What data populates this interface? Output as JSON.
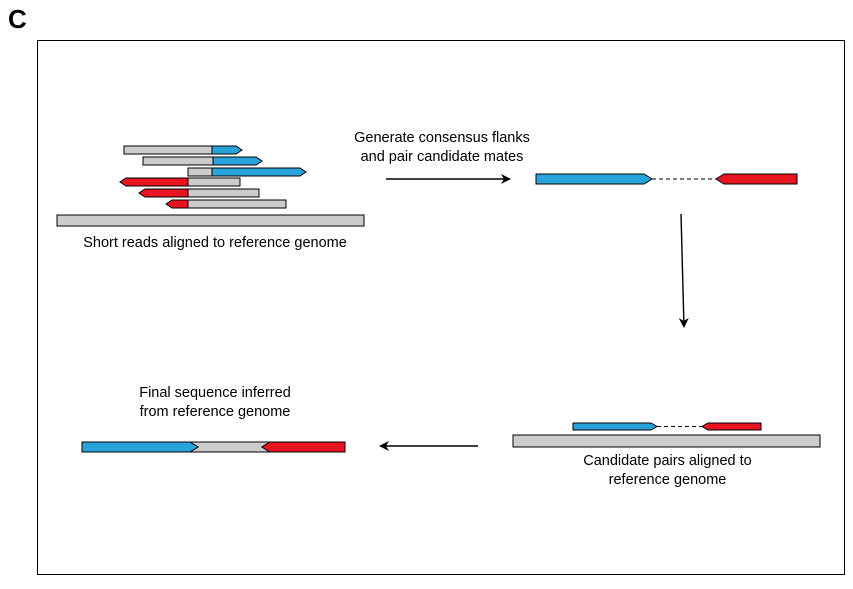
{
  "panel_label": "C",
  "labels": {
    "short_reads": "Short reads aligned to reference genome",
    "step1_line1": "Generate consensus flanks",
    "step1_line2": "and pair candidate mates",
    "final_line1": "Final sequence inferred",
    "final_line2": "from reference genome",
    "candidate_line1": "Candidate pairs aligned to",
    "candidate_line2": "reference genome"
  },
  "colors": {
    "blue": "#29a3dc",
    "red": "#e8141f",
    "gray": "#cccccc",
    "outline": "#000000"
  }
}
